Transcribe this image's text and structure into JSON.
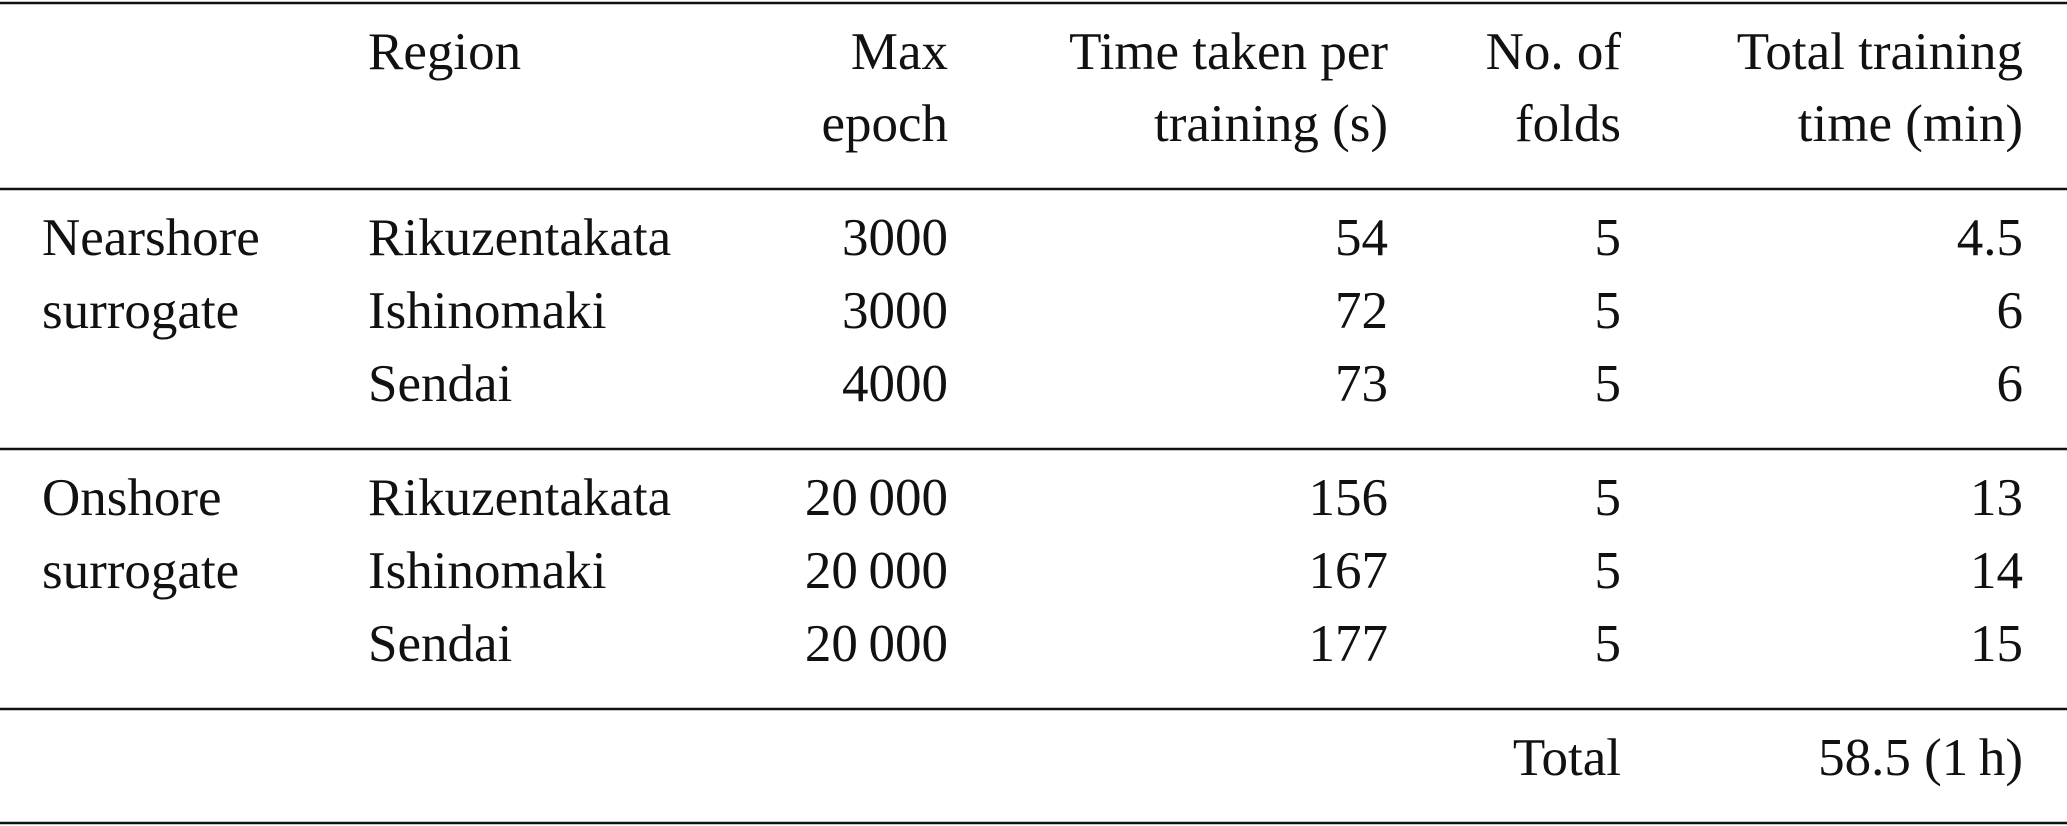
{
  "table": {
    "header": [
      [
        "Region"
      ],
      [
        "Max",
        "epoch"
      ],
      [
        "Time taken per",
        "training (s)"
      ],
      [
        "No. of",
        "folds"
      ],
      [
        "Total training",
        "time (min)"
      ]
    ],
    "groups": [
      {
        "label": [
          "Nearshore",
          "surrogate"
        ],
        "rows": [
          [
            "Rikuzentakata",
            "3000",
            "54",
            "5",
            "4.5"
          ],
          [
            "Ishinomaki",
            "3000",
            "72",
            "5",
            "6"
          ],
          [
            "Sendai",
            "4000",
            "73",
            "5",
            "6"
          ]
        ]
      },
      {
        "label": [
          "Onshore",
          "surrogate"
        ],
        "rows": [
          [
            "Rikuzentakata",
            "20 000",
            "156",
            "5",
            "13"
          ],
          [
            "Ishinomaki",
            "20 000",
            "167",
            "5",
            "14"
          ],
          [
            "Sendai",
            "20 000",
            "177",
            "5",
            "15"
          ]
        ]
      }
    ],
    "footer": {
      "label": "Total",
      "value": "58.5 (1 h)"
    }
  }
}
